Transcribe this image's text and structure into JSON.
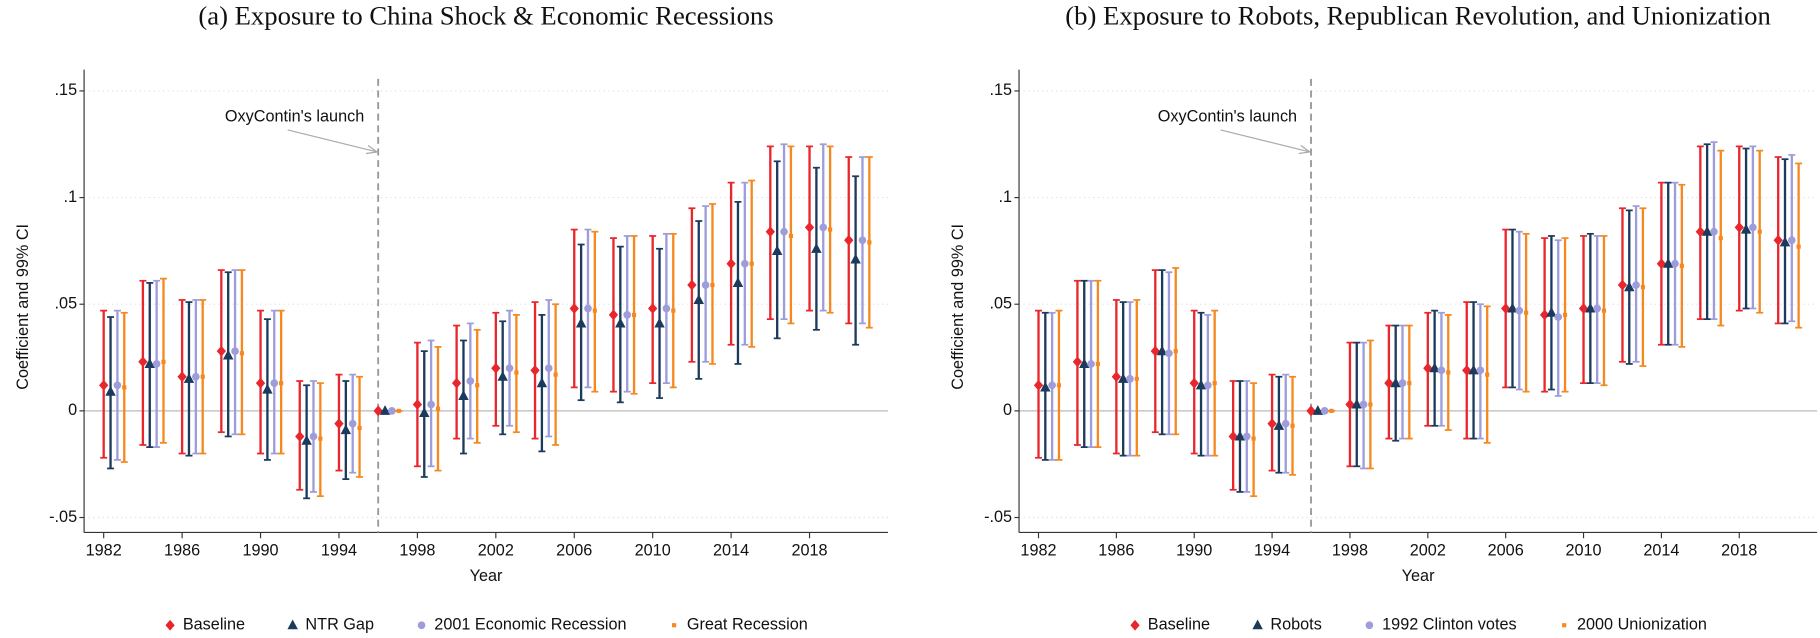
{
  "chart_data": [
    {
      "type": "errorbar",
      "title": "(a) Exposure to China Shock & Economic Recessions",
      "xlabel": "Year",
      "ylabel": "Coefficient and 99% CI",
      "annotation": "OxyContin's launch",
      "vline": 1996,
      "x": [
        1982,
        1984,
        1986,
        1988,
        1990,
        1992,
        1994,
        1996,
        1998,
        2000,
        2002,
        2004,
        2006,
        2008,
        2010,
        2012,
        2014,
        2016,
        2018,
        2020
      ],
      "xlim": [
        1981,
        2022
      ],
      "xticks": [
        1982,
        1986,
        1990,
        1994,
        1998,
        2002,
        2006,
        2010,
        2014,
        2018
      ],
      "ylim": [
        -0.057,
        0.16
      ],
      "yticks": [
        {
          "value": -0.05,
          "label": "-.05"
        },
        0,
        {
          "value": 0.05,
          "label": ".05"
        },
        {
          "value": 0.1,
          "label": ".1"
        },
        {
          "value": 0.15,
          "label": ".15"
        }
      ],
      "grid": true,
      "legend": "bottom",
      "series": [
        {
          "name": "Baseline",
          "color": "#e8262b",
          "marker": "diamond",
          "values": [
            0.012,
            0.023,
            0.016,
            0.028,
            0.013,
            -0.012,
            -0.006,
            0,
            0.003,
            0.013,
            0.02,
            0.019,
            0.048,
            0.045,
            0.048,
            0.059,
            0.069,
            0.084,
            0.086,
            0.08
          ],
          "lower": [
            -0.022,
            -0.016,
            -0.02,
            -0.01,
            -0.02,
            -0.037,
            -0.028,
            0,
            -0.026,
            -0.013,
            -0.007,
            -0.013,
            0.011,
            0.009,
            0.013,
            0.023,
            0.031,
            0.043,
            0.047,
            0.041
          ],
          "upper": [
            0.047,
            0.061,
            0.052,
            0.066,
            0.047,
            0.014,
            0.017,
            0,
            0.032,
            0.04,
            0.046,
            0.051,
            0.085,
            0.081,
            0.082,
            0.095,
            0.107,
            0.124,
            0.124,
            0.119
          ]
        },
        {
          "name": "NTR Gap",
          "color": "#1b3a5c",
          "marker": "triangle",
          "values": [
            0.009,
            0.022,
            0.015,
            0.026,
            0.01,
            -0.014,
            -0.009,
            0,
            -0.001,
            0.007,
            0.016,
            0.013,
            0.041,
            0.041,
            0.041,
            0.052,
            0.06,
            0.075,
            0.076,
            0.071
          ],
          "lower": [
            -0.027,
            -0.017,
            -0.021,
            -0.012,
            -0.023,
            -0.041,
            -0.032,
            0,
            -0.031,
            -0.02,
            -0.011,
            -0.019,
            0.005,
            0.004,
            0.006,
            0.015,
            0.022,
            0.034,
            0.038,
            0.031
          ],
          "upper": [
            0.044,
            0.06,
            0.051,
            0.065,
            0.043,
            0.012,
            0.014,
            0,
            0.028,
            0.033,
            0.042,
            0.045,
            0.078,
            0.077,
            0.076,
            0.089,
            0.098,
            0.117,
            0.114,
            0.11
          ]
        },
        {
          "name": "2001 Economic Recession",
          "color": "#9d9ddb",
          "marker": "circle",
          "values": [
            0.012,
            0.022,
            0.016,
            0.028,
            0.013,
            -0.012,
            -0.006,
            0,
            0.003,
            0.014,
            0.02,
            0.02,
            0.048,
            0.045,
            0.048,
            0.059,
            0.069,
            0.084,
            0.086,
            0.08
          ],
          "lower": [
            -0.023,
            -0.017,
            -0.02,
            -0.011,
            -0.02,
            -0.038,
            -0.029,
            0,
            -0.026,
            -0.013,
            -0.007,
            -0.012,
            0.011,
            0.009,
            0.013,
            0.023,
            0.031,
            0.043,
            0.047,
            0.041
          ],
          "upper": [
            0.047,
            0.061,
            0.052,
            0.066,
            0.047,
            0.014,
            0.017,
            0,
            0.033,
            0.041,
            0.047,
            0.052,
            0.085,
            0.082,
            0.083,
            0.096,
            0.107,
            0.125,
            0.125,
            0.119
          ]
        },
        {
          "name": "Great Recession",
          "color": "#f5891f",
          "marker": "square",
          "values": [
            0.011,
            0.023,
            0.016,
            0.027,
            0.013,
            -0.013,
            -0.008,
            0,
            0.001,
            0.012,
            0.018,
            0.017,
            0.047,
            0.045,
            0.047,
            0.059,
            0.069,
            0.082,
            0.085,
            0.079
          ],
          "lower": [
            -0.024,
            -0.015,
            -0.02,
            -0.011,
            -0.02,
            -0.04,
            -0.031,
            0,
            -0.028,
            -0.015,
            -0.01,
            -0.016,
            0.009,
            0.008,
            0.011,
            0.022,
            0.03,
            0.041,
            0.046,
            0.039
          ],
          "upper": [
            0.046,
            0.062,
            0.052,
            0.066,
            0.047,
            0.013,
            0.016,
            0,
            0.03,
            0.038,
            0.045,
            0.05,
            0.084,
            0.082,
            0.083,
            0.097,
            0.108,
            0.124,
            0.124,
            0.119
          ]
        }
      ]
    },
    {
      "type": "errorbar",
      "title": "(b) Exposure to Robots, Republican Revolution, and Unionization",
      "xlabel": "Year",
      "ylabel": "Coefficient and 99% CI",
      "annotation": "OxyContin's launch",
      "vline": 1996,
      "x": [
        1982,
        1984,
        1986,
        1988,
        1990,
        1992,
        1994,
        1996,
        1998,
        2000,
        2002,
        2004,
        2006,
        2008,
        2010,
        2012,
        2014,
        2016,
        2018,
        2020
      ],
      "xlim": [
        1981,
        2022
      ],
      "xticks": [
        1982,
        1986,
        1990,
        1994,
        1998,
        2002,
        2006,
        2010,
        2014,
        2018
      ],
      "ylim": [
        -0.057,
        0.16
      ],
      "yticks": [
        {
          "value": -0.05,
          "label": "-.05"
        },
        0,
        {
          "value": 0.05,
          "label": ".05"
        },
        {
          "value": 0.1,
          "label": ".1"
        },
        {
          "value": 0.15,
          "label": ".15"
        }
      ],
      "grid": true,
      "legend": "bottom",
      "series": [
        {
          "name": "Baseline",
          "color": "#e8262b",
          "marker": "diamond",
          "values": [
            0.012,
            0.023,
            0.016,
            0.028,
            0.013,
            -0.012,
            -0.006,
            0,
            0.003,
            0.013,
            0.02,
            0.019,
            0.048,
            0.045,
            0.048,
            0.059,
            0.069,
            0.084,
            0.086,
            0.08
          ],
          "lower": [
            -0.022,
            -0.016,
            -0.02,
            -0.01,
            -0.02,
            -0.037,
            -0.028,
            0,
            -0.026,
            -0.013,
            -0.007,
            -0.013,
            0.011,
            0.009,
            0.013,
            0.023,
            0.031,
            0.043,
            0.047,
            0.041
          ],
          "upper": [
            0.047,
            0.061,
            0.052,
            0.066,
            0.047,
            0.014,
            0.017,
            0,
            0.032,
            0.04,
            0.046,
            0.051,
            0.085,
            0.081,
            0.082,
            0.095,
            0.107,
            0.124,
            0.124,
            0.119
          ]
        },
        {
          "name": "Robots",
          "color": "#1b3a5c",
          "marker": "triangle",
          "values": [
            0.011,
            0.022,
            0.015,
            0.028,
            0.012,
            -0.012,
            -0.007,
            0,
            0.003,
            0.013,
            0.02,
            0.019,
            0.048,
            0.046,
            0.048,
            0.058,
            0.069,
            0.084,
            0.085,
            0.079
          ],
          "lower": [
            -0.023,
            -0.017,
            -0.021,
            -0.011,
            -0.021,
            -0.038,
            -0.029,
            0,
            -0.026,
            -0.014,
            -0.007,
            -0.013,
            0.011,
            0.01,
            0.013,
            0.022,
            0.031,
            0.043,
            0.048,
            0.041
          ],
          "upper": [
            0.046,
            0.061,
            0.051,
            0.066,
            0.046,
            0.014,
            0.016,
            0,
            0.032,
            0.04,
            0.047,
            0.051,
            0.085,
            0.082,
            0.083,
            0.094,
            0.107,
            0.125,
            0.123,
            0.118
          ]
        },
        {
          "name": "1992 Clinton votes",
          "color": "#9d9ddb",
          "marker": "circle",
          "values": [
            0.012,
            0.022,
            0.015,
            0.027,
            0.012,
            -0.012,
            -0.006,
            0,
            0.003,
            0.013,
            0.019,
            0.019,
            0.047,
            0.044,
            0.048,
            0.059,
            0.069,
            0.084,
            0.086,
            0.08
          ],
          "lower": [
            -0.023,
            -0.017,
            -0.021,
            -0.011,
            -0.021,
            -0.038,
            -0.029,
            0,
            -0.027,
            -0.013,
            -0.007,
            -0.013,
            0.01,
            0.007,
            0.013,
            0.023,
            0.031,
            0.043,
            0.048,
            0.042
          ],
          "upper": [
            0.046,
            0.061,
            0.051,
            0.065,
            0.045,
            0.014,
            0.017,
            0,
            0.032,
            0.04,
            0.046,
            0.05,
            0.084,
            0.08,
            0.082,
            0.096,
            0.107,
            0.126,
            0.124,
            0.12
          ]
        },
        {
          "name": "2000 Unionization",
          "color": "#f5891f",
          "marker": "square",
          "values": [
            0.012,
            0.022,
            0.015,
            0.028,
            0.013,
            -0.013,
            -0.007,
            0,
            0.003,
            0.013,
            0.018,
            0.017,
            0.046,
            0.045,
            0.047,
            0.058,
            0.068,
            0.081,
            0.084,
            0.077
          ],
          "lower": [
            -0.023,
            -0.017,
            -0.021,
            -0.011,
            -0.021,
            -0.04,
            -0.03,
            0,
            -0.027,
            -0.013,
            -0.009,
            -0.015,
            0.009,
            0.009,
            0.012,
            0.021,
            0.03,
            0.04,
            0.046,
            0.039
          ],
          "upper": [
            0.047,
            0.061,
            0.052,
            0.067,
            0.047,
            0.013,
            0.016,
            0,
            0.033,
            0.04,
            0.045,
            0.049,
            0.083,
            0.081,
            0.082,
            0.095,
            0.106,
            0.122,
            0.122,
            0.116
          ]
        }
      ]
    }
  ]
}
